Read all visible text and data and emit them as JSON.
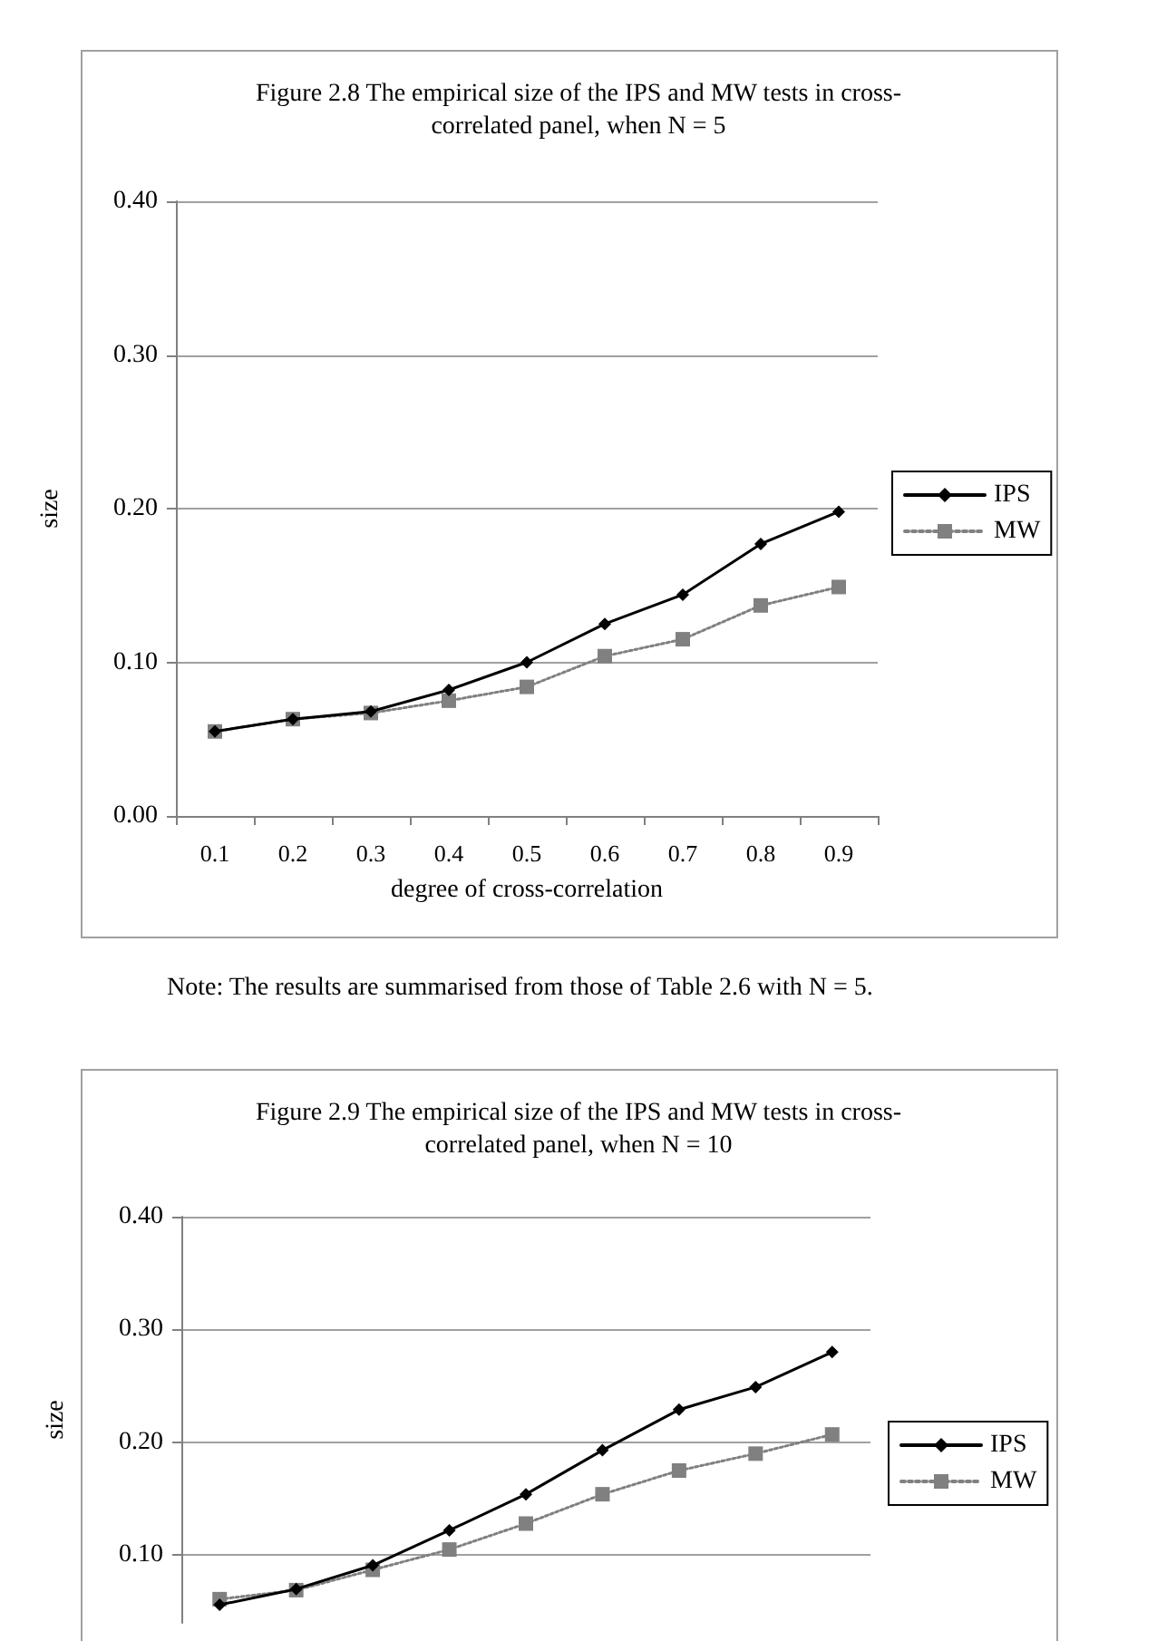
{
  "chart_data": [
    {
      "type": "line",
      "title": "Figure 2.8 The empirical size of the IPS and MW tests in cross-\ncorrelated panel, when N = 5",
      "xlabel": "degree of cross-correlation",
      "ylabel": "size",
      "annotations": [
        "Note: The results are summarised from those of Table 2.6 with N = 5."
      ],
      "categories": [
        "0.1",
        "0.2",
        "0.3",
        "0.4",
        "0.5",
        "0.6",
        "0.7",
        "0.8",
        "0.9"
      ],
      "series": [
        {
          "name": "IPS",
          "color": "#000000",
          "marker": "diamond",
          "line_style": "solid",
          "values": [
            0.055,
            0.063,
            0.068,
            0.082,
            0.1,
            0.125,
            0.144,
            0.177,
            0.198
          ]
        },
        {
          "name": "MW",
          "color": "#808080",
          "marker": "square",
          "line_style": "dotted",
          "values": [
            0.055,
            0.063,
            0.067,
            0.075,
            0.084,
            0.104,
            0.115,
            0.137,
            0.149
          ]
        }
      ],
      "ylim": [
        0,
        0.4
      ],
      "yticks": [
        {
          "value": 0,
          "label": "0.00"
        },
        {
          "value": 0.1,
          "label": "0.10"
        },
        {
          "value": 0.2,
          "label": "0.20"
        },
        {
          "value": 0.3,
          "label": "0.30"
        },
        {
          "value": 0.4,
          "label": "0.40"
        }
      ],
      "grid": "y",
      "legend": "right"
    },
    {
      "type": "line",
      "title": "Figure 2.9 The empirical size of the IPS and MW tests in cross-\ncorrelated panel, when N = 10",
      "ylabel": "size",
      "categories": [
        null,
        null,
        null,
        null,
        null,
        null,
        null,
        null,
        null
      ],
      "series": [
        {
          "name": "IPS",
          "color": "#000000",
          "marker": "diamond",
          "line_style": "solid",
          "values": [
            0.056,
            0.07,
            0.091,
            0.122,
            0.154,
            0.193,
            0.229,
            0.249,
            0.28
          ]
        },
        {
          "name": "MW",
          "color": "#808080",
          "marker": "square",
          "line_style": "dotted",
          "values": [
            0.061,
            0.069,
            0.087,
            0.105,
            0.128,
            0.154,
            0.175,
            0.19,
            0.207
          ]
        }
      ],
      "ylim": [
        0.04,
        0.4
      ],
      "yticks": [
        {
          "value": 0.1,
          "label": "0.10"
        },
        {
          "value": 0.2,
          "label": "0.20"
        },
        {
          "value": 0.3,
          "label": "0.30"
        },
        {
          "value": 0.4,
          "label": "0.40"
        }
      ],
      "grid": "y",
      "legend": "right",
      "tick_labels": "y"
    }
  ]
}
